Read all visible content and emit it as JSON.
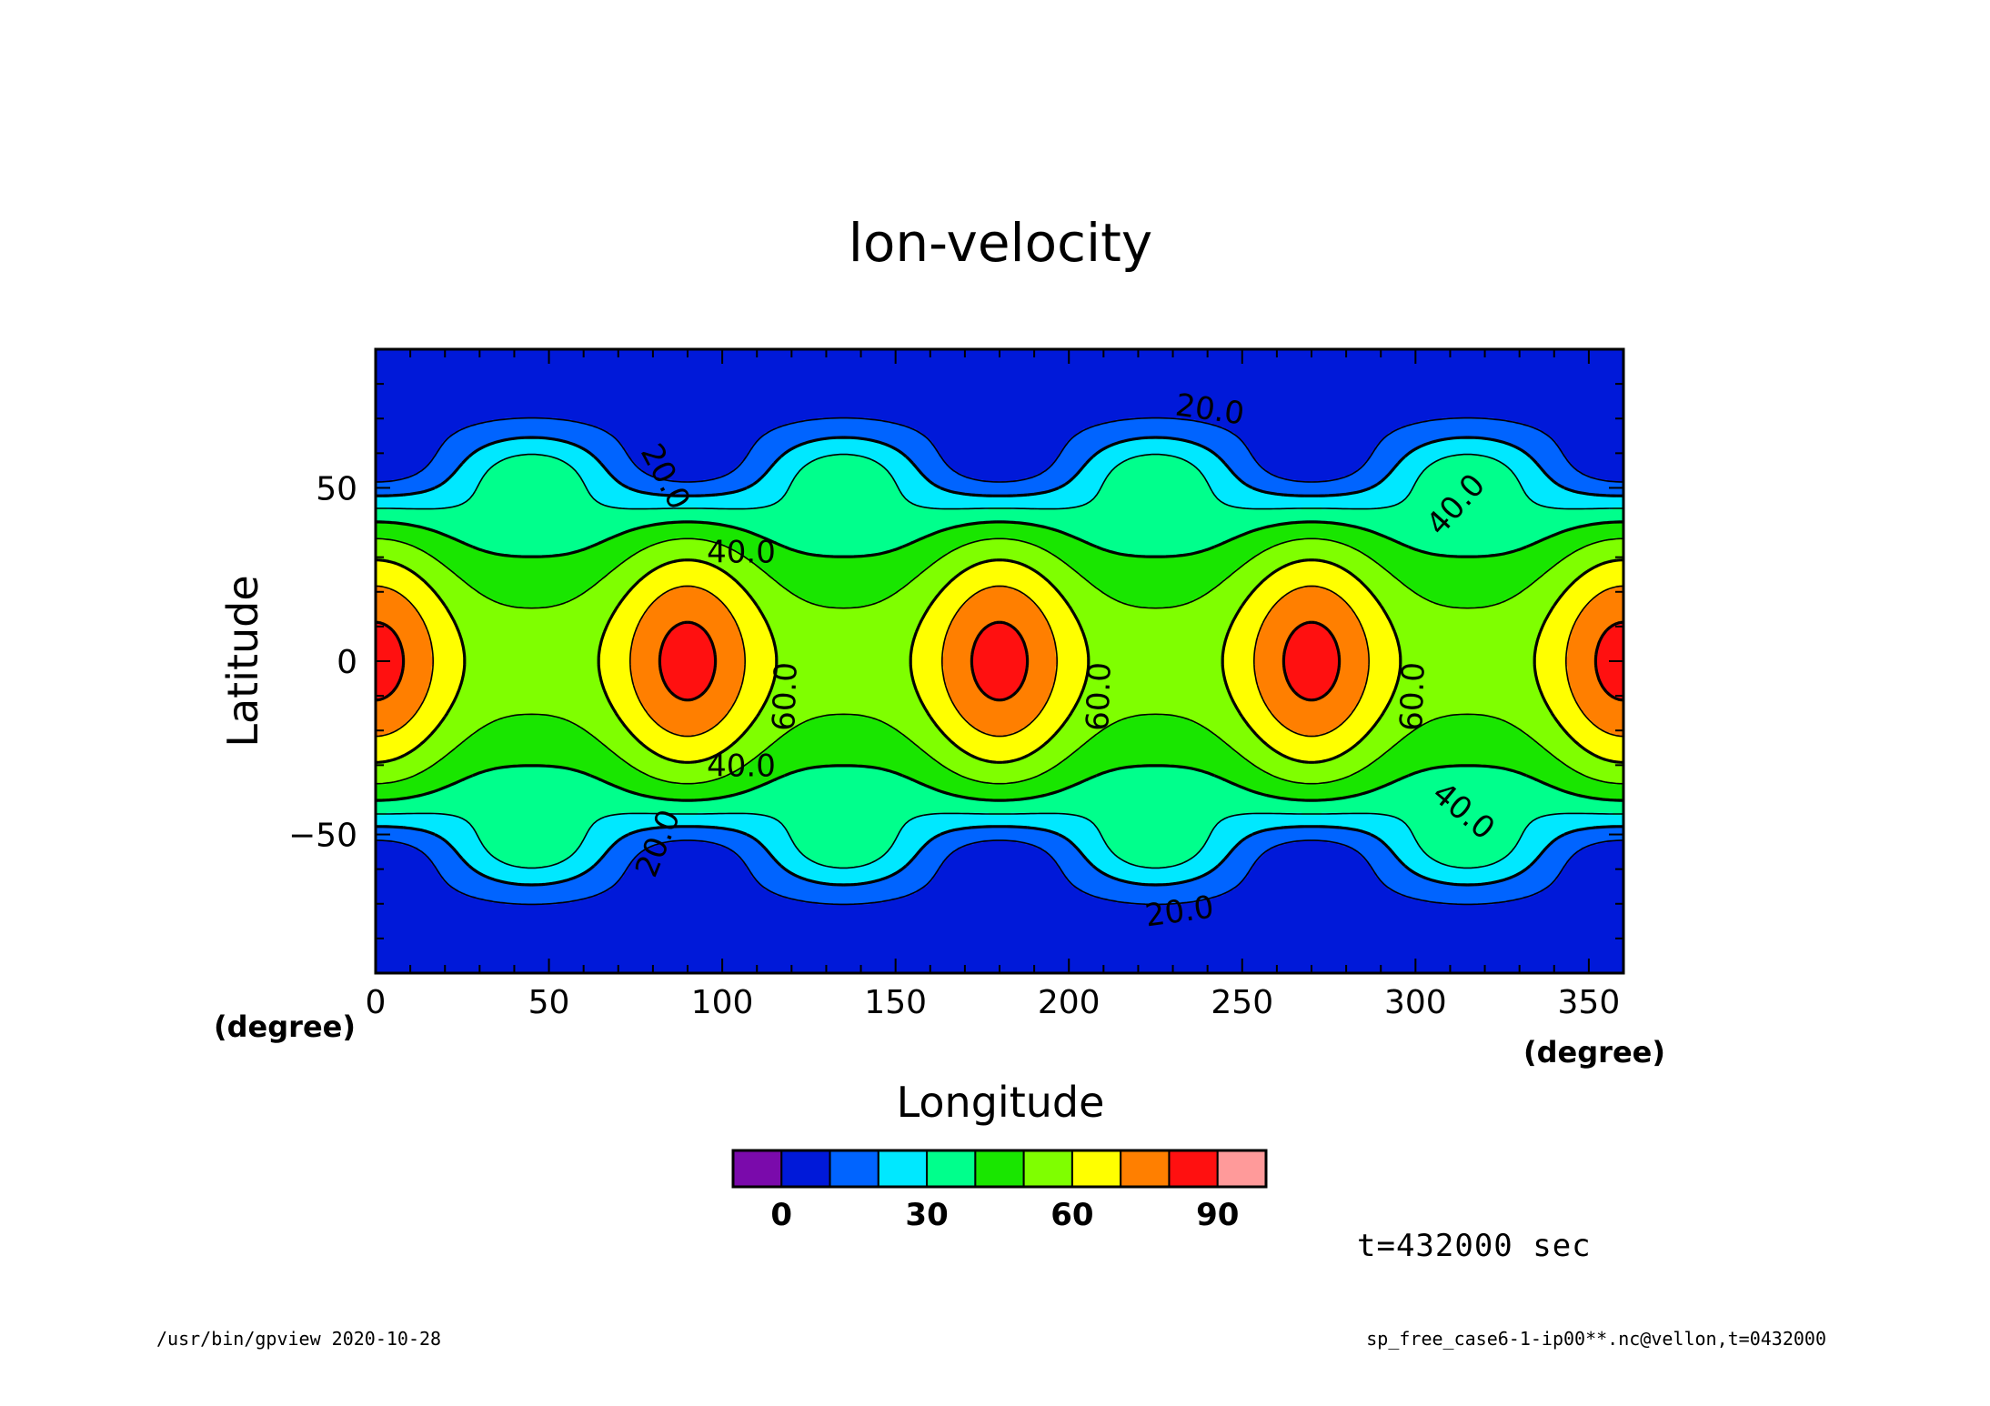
{
  "chart_data": {
    "type": "heatmap",
    "title": "lon-velocity",
    "xlabel": "Longitude",
    "ylabel": "Latitude",
    "x_unit": "(degree)",
    "y_unit": "(degree)",
    "xlim": [
      0,
      360
    ],
    "ylim": [
      -90,
      90
    ],
    "x_ticks": [
      0,
      50,
      100,
      150,
      200,
      250,
      300,
      350
    ],
    "y_ticks": [
      -50,
      0,
      50
    ],
    "contour_interval": 10,
    "contour_labels": [
      "20.0",
      "40.0",
      "60.0"
    ],
    "colorbar": {
      "levels": [
        -10,
        0,
        10,
        20,
        30,
        40,
        50,
        60,
        70,
        80,
        90,
        100
      ],
      "tick_labels": [
        "0",
        "30",
        "60",
        "90"
      ],
      "tick_values": [
        0,
        30,
        60,
        90
      ],
      "colors": [
        "#7a0aab",
        "#0019d9",
        "#0064ff",
        "#00e8ff",
        "#00ff8c",
        "#19e600",
        "#7fff00",
        "#ffff00",
        "#ff7f00",
        "#ff1010",
        "#ff9a9a"
      ]
    },
    "annotation": "t=432000 sec"
  },
  "footer": {
    "left": "/usr/bin/gpview   2020-10-28",
    "right": "sp_free_case6-1-ip00**.nc@vellon,t=0432000"
  }
}
